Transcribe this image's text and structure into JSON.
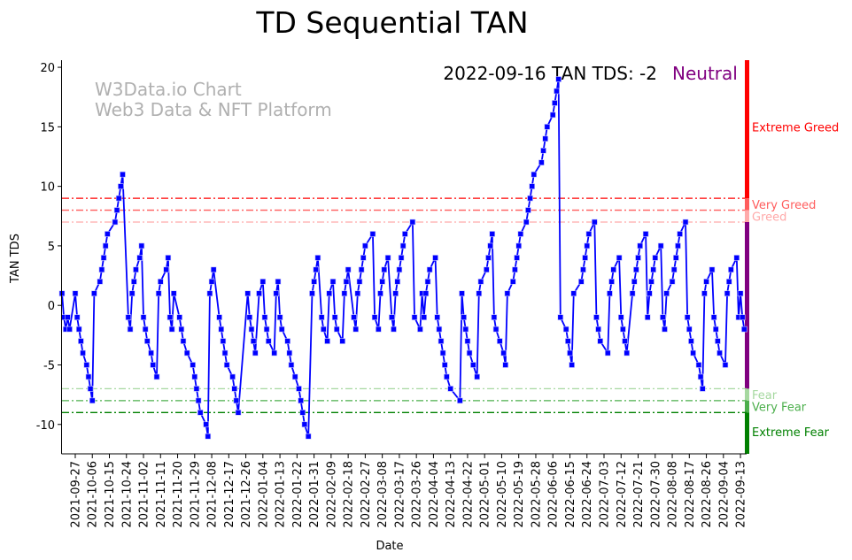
{
  "chart_data": {
    "type": "line",
    "title": "TD Sequential TAN",
    "xlabel": "Date",
    "ylabel": "TAN TDS",
    "ylim": [
      -12.47,
      20.6
    ],
    "xlim": [
      0,
      361
    ],
    "yticks": [
      -10,
      -5,
      0,
      5,
      10,
      15,
      20
    ],
    "xtick_days": [
      7,
      16,
      25,
      34,
      43,
      52,
      61,
      70,
      79,
      88,
      97,
      106,
      115,
      124,
      133,
      142,
      151,
      160,
      169,
      178,
      187,
      196,
      205,
      214,
      223,
      232,
      241,
      250,
      259,
      268,
      277,
      286,
      295,
      304,
      313,
      322,
      331,
      340,
      349,
      358
    ],
    "xtick_labels": [
      "2021-09-27",
      "2021-10-06",
      "2021-10-15",
      "2021-10-24",
      "2021-11-02",
      "2021-11-11",
      "2021-11-20",
      "2021-11-29",
      "2021-12-08",
      "2021-12-17",
      "2021-12-26",
      "2022-01-04",
      "2022-01-13",
      "2022-01-22",
      "2022-01-31",
      "2022-02-09",
      "2022-02-18",
      "2022-02-27",
      "2022-03-08",
      "2022-03-17",
      "2022-03-26",
      "2022-04-04",
      "2022-04-13",
      "2022-04-22",
      "2022-05-01",
      "2022-05-10",
      "2022-05-19",
      "2022-05-28",
      "2022-06-06",
      "2022-06-15",
      "2022-06-24",
      "2022-07-03",
      "2022-07-12",
      "2022-07-21",
      "2022-07-30",
      "2022-08-08",
      "2022-08-17",
      "2022-08-26",
      "2022-09-04",
      "2022-09-13"
    ],
    "series": [
      {
        "name": "TAN TDS",
        "color": "#0000ff",
        "points": [
          [
            0,
            1
          ],
          [
            1,
            -1
          ],
          [
            2,
            -2
          ],
          [
            3,
            -1
          ],
          [
            4,
            -2
          ],
          [
            7,
            1
          ],
          [
            8,
            -1
          ],
          [
            9,
            -2
          ],
          [
            10,
            -3
          ],
          [
            11,
            -4
          ],
          [
            13,
            -5
          ],
          [
            14,
            -6
          ],
          [
            15,
            -7
          ],
          [
            16,
            -8
          ],
          [
            17,
            1
          ],
          [
            20,
            2
          ],
          [
            21,
            3
          ],
          [
            22,
            4
          ],
          [
            23,
            5
          ],
          [
            24,
            6
          ],
          [
            28,
            7
          ],
          [
            29,
            8
          ],
          [
            30,
            9
          ],
          [
            31,
            10
          ],
          [
            32,
            11
          ],
          [
            35,
            -1
          ],
          [
            36,
            -2
          ],
          [
            37,
            1
          ],
          [
            38,
            2
          ],
          [
            39,
            3
          ],
          [
            41,
            4
          ],
          [
            42,
            5
          ],
          [
            43,
            -1
          ],
          [
            44,
            -2
          ],
          [
            45,
            -3
          ],
          [
            47,
            -4
          ],
          [
            48,
            -5
          ],
          [
            50,
            -6
          ],
          [
            51,
            1
          ],
          [
            52,
            2
          ],
          [
            55,
            3
          ],
          [
            56,
            4
          ],
          [
            57,
            -1
          ],
          [
            58,
            -2
          ],
          [
            59,
            1
          ],
          [
            62,
            -1
          ],
          [
            63,
            -2
          ],
          [
            64,
            -3
          ],
          [
            66,
            -4
          ],
          [
            69,
            -5
          ],
          [
            70,
            -6
          ],
          [
            71,
            -7
          ],
          [
            72,
            -8
          ],
          [
            73,
            -9
          ],
          [
            76,
            -10
          ],
          [
            77,
            -11
          ],
          [
            78,
            1
          ],
          [
            79,
            2
          ],
          [
            80,
            3
          ],
          [
            83,
            -1
          ],
          [
            84,
            -2
          ],
          [
            85,
            -3
          ],
          [
            86,
            -4
          ],
          [
            87,
            -5
          ],
          [
            90,
            -6
          ],
          [
            91,
            -7
          ],
          [
            92,
            -8
          ],
          [
            93,
            -9
          ],
          [
            98,
            1
          ],
          [
            99,
            -1
          ],
          [
            100,
            -2
          ],
          [
            101,
            -3
          ],
          [
            102,
            -4
          ],
          [
            104,
            1
          ],
          [
            106,
            2
          ],
          [
            107,
            -1
          ],
          [
            108,
            -2
          ],
          [
            109,
            -3
          ],
          [
            112,
            -4
          ],
          [
            113,
            1
          ],
          [
            114,
            2
          ],
          [
            115,
            -1
          ],
          [
            116,
            -2
          ],
          [
            119,
            -3
          ],
          [
            120,
            -4
          ],
          [
            121,
            -5
          ],
          [
            123,
            -6
          ],
          [
            125,
            -7
          ],
          [
            126,
            -8
          ],
          [
            127,
            -9
          ],
          [
            128,
            -10
          ],
          [
            130,
            -11
          ],
          [
            132,
            1
          ],
          [
            133,
            2
          ],
          [
            134,
            3
          ],
          [
            135,
            4
          ],
          [
            137,
            -1
          ],
          [
            138,
            -2
          ],
          [
            140,
            -3
          ],
          [
            141,
            1
          ],
          [
            143,
            2
          ],
          [
            144,
            -1
          ],
          [
            145,
            -2
          ],
          [
            148,
            -3
          ],
          [
            149,
            1
          ],
          [
            150,
            2
          ],
          [
            151,
            3
          ],
          [
            154,
            -1
          ],
          [
            155,
            -2
          ],
          [
            156,
            1
          ],
          [
            157,
            2
          ],
          [
            158,
            3
          ],
          [
            159,
            4
          ],
          [
            160,
            5
          ],
          [
            164,
            6
          ],
          [
            165,
            -1
          ],
          [
            167,
            -2
          ],
          [
            168,
            1
          ],
          [
            169,
            2
          ],
          [
            170,
            3
          ],
          [
            172,
            4
          ],
          [
            174,
            -1
          ],
          [
            175,
            -2
          ],
          [
            176,
            1
          ],
          [
            177,
            2
          ],
          [
            178,
            3
          ],
          [
            179,
            4
          ],
          [
            180,
            5
          ],
          [
            181,
            6
          ],
          [
            185,
            7
          ],
          [
            186,
            -1
          ],
          [
            189,
            -2
          ],
          [
            190,
            1
          ],
          [
            191,
            -1
          ],
          [
            192,
            1
          ],
          [
            193,
            2
          ],
          [
            194,
            3
          ],
          [
            197,
            4
          ],
          [
            198,
            -1
          ],
          [
            199,
            -2
          ],
          [
            200,
            -3
          ],
          [
            201,
            -4
          ],
          [
            202,
            -5
          ],
          [
            203,
            -6
          ],
          [
            205,
            -7
          ],
          [
            210,
            -8
          ],
          [
            211,
            1
          ],
          [
            212,
            -1
          ],
          [
            213,
            -2
          ],
          [
            214,
            -3
          ],
          [
            215,
            -4
          ],
          [
            217,
            -5
          ],
          [
            219,
            -6
          ],
          [
            220,
            1
          ],
          [
            221,
            2
          ],
          [
            224,
            3
          ],
          [
            225,
            4
          ],
          [
            226,
            5
          ],
          [
            227,
            6
          ],
          [
            228,
            -1
          ],
          [
            229,
            -2
          ],
          [
            231,
            -3
          ],
          [
            233,
            -4
          ],
          [
            234,
            -5
          ],
          [
            235,
            1
          ],
          [
            238,
            2
          ],
          [
            239,
            3
          ],
          [
            240,
            4
          ],
          [
            241,
            5
          ],
          [
            242,
            6
          ],
          [
            245,
            7
          ],
          [
            246,
            8
          ],
          [
            247,
            9
          ],
          [
            248,
            10
          ],
          [
            249,
            11
          ],
          [
            253,
            12
          ],
          [
            254,
            13
          ],
          [
            255,
            14
          ],
          [
            256,
            15
          ],
          [
            259,
            16
          ],
          [
            260,
            17
          ],
          [
            261,
            18
          ],
          [
            262,
            19
          ],
          [
            263,
            -1
          ],
          [
            266,
            -2
          ],
          [
            267,
            -3
          ],
          [
            268,
            -4
          ],
          [
            269,
            -5
          ],
          [
            270,
            1
          ],
          [
            274,
            2
          ],
          [
            275,
            3
          ],
          [
            276,
            4
          ],
          [
            277,
            5
          ],
          [
            278,
            6
          ],
          [
            281,
            7
          ],
          [
            282,
            -1
          ],
          [
            283,
            -2
          ],
          [
            284,
            -3
          ],
          [
            288,
            -4
          ],
          [
            289,
            1
          ],
          [
            290,
            2
          ],
          [
            291,
            3
          ],
          [
            294,
            4
          ],
          [
            295,
            -1
          ],
          [
            296,
            -2
          ],
          [
            297,
            -3
          ],
          [
            298,
            -4
          ],
          [
            301,
            1
          ],
          [
            302,
            2
          ],
          [
            303,
            3
          ],
          [
            304,
            4
          ],
          [
            305,
            5
          ],
          [
            308,
            6
          ],
          [
            309,
            -1
          ],
          [
            310,
            1
          ],
          [
            311,
            2
          ],
          [
            312,
            3
          ],
          [
            313,
            4
          ],
          [
            316,
            5
          ],
          [
            317,
            -1
          ],
          [
            318,
            -2
          ],
          [
            319,
            1
          ],
          [
            322,
            2
          ],
          [
            323,
            3
          ],
          [
            324,
            4
          ],
          [
            325,
            5
          ],
          [
            326,
            6
          ],
          [
            329,
            7
          ],
          [
            330,
            -1
          ],
          [
            331,
            -2
          ],
          [
            332,
            -3
          ],
          [
            333,
            -4
          ],
          [
            336,
            -5
          ],
          [
            337,
            -6
          ],
          [
            338,
            -7
          ],
          [
            339,
            1
          ],
          [
            340,
            2
          ],
          [
            343,
            3
          ],
          [
            344,
            -1
          ],
          [
            345,
            -2
          ],
          [
            346,
            -3
          ],
          [
            347,
            -4
          ],
          [
            350,
            -5
          ],
          [
            351,
            1
          ],
          [
            352,
            2
          ],
          [
            353,
            3
          ],
          [
            356,
            4
          ],
          [
            357,
            -1
          ],
          [
            358,
            1
          ],
          [
            359,
            -1
          ],
          [
            360,
            -2
          ]
        ]
      }
    ],
    "thresholds": [
      {
        "value": 9,
        "label": "Extreme Greed",
        "color": "#ff0000",
        "band": [
          9,
          20.6
        ]
      },
      {
        "value": 8,
        "label": "Very Greed",
        "color": "#ff5c5c",
        "band": [
          8,
          9
        ]
      },
      {
        "value": 7,
        "label": "Greed",
        "color": "#ffaaaa",
        "band": [
          7,
          8
        ]
      },
      {
        "value": null,
        "label": "",
        "color": "#800080",
        "band": [
          -7,
          7
        ]
      },
      {
        "value": -7,
        "label": "Fear",
        "color": "#a6d8a0",
        "band": [
          -8,
          -7
        ]
      },
      {
        "value": -8,
        "label": "Very Fear",
        "color": "#4caf4c",
        "band": [
          -9,
          -8
        ]
      },
      {
        "value": -9,
        "label": "Extreme Fear",
        "color": "#008000",
        "band": [
          -12.47,
          -9
        ]
      }
    ],
    "annotation": {
      "text": "2022-09-16 TAN TDS: -2",
      "status": "Neutral",
      "status_color": "#800080"
    },
    "watermark": [
      "W3Data.io Chart",
      "Web3 Data & NFT Platform"
    ],
    "grid": false,
    "legend": "none"
  }
}
